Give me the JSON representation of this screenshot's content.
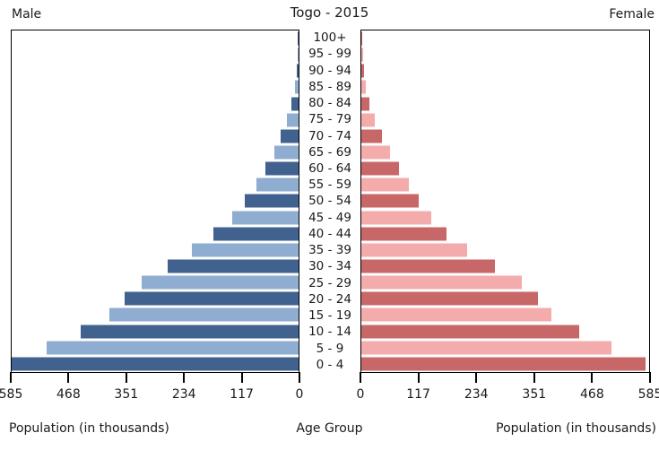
{
  "title": "Togo - 2015",
  "headers": {
    "male": "Male",
    "female": "Female"
  },
  "axis": {
    "left_ticks": [
      "585",
      "468",
      "351",
      "234",
      "117",
      "0"
    ],
    "right_ticks": [
      "0",
      "117",
      "234",
      "351",
      "468",
      "585"
    ],
    "xlabel_left": "Population (in thousands)",
    "xlabel_center": "Age Group",
    "xlabel_right": "Population (in thousands)"
  },
  "colors": {
    "male_dark": "#41618e",
    "male_light": "#8fadd1",
    "female_dark": "#c86767",
    "female_light": "#f4abab",
    "axis_line": "#000000",
    "text": "#1a1a1a"
  },
  "chart_data": {
    "type": "bar",
    "subtype": "population-pyramid",
    "title": "Togo - 2015",
    "xlabel": "Population (in thousands)",
    "ylabel": "Age Group",
    "xlim": [
      0,
      585
    ],
    "grid": false,
    "legend_position": "top-outer (Male left, Female right)",
    "categories_top_to_bottom": [
      "100+",
      "95 - 99",
      "90 - 94",
      "85 - 89",
      "80 - 84",
      "75 - 79",
      "70 - 74",
      "65 - 69",
      "60 - 64",
      "55 - 59",
      "50 - 54",
      "45 - 49",
      "40 - 44",
      "35 - 39",
      "30 - 34",
      "25 - 29",
      "20 - 24",
      "15 - 19",
      "10 - 14",
      "5 - 9",
      "0 - 4"
    ],
    "series": [
      {
        "name": "Male",
        "side": "left",
        "values": [
          1,
          2,
          4,
          8,
          14,
          24,
          36,
          50,
          67,
          86,
          110,
          136,
          174,
          218,
          267,
          320,
          354,
          385,
          445,
          513,
          585
        ]
      },
      {
        "name": "Female",
        "side": "right",
        "values": [
          1,
          3,
          5,
          9,
          16,
          27,
          42,
          59,
          77,
          97,
          117,
          142,
          174,
          215,
          271,
          326,
          359,
          386,
          442,
          508,
          578
        ]
      }
    ],
    "bar_color_pattern": "alternating dark/light per age row, bottom row dark"
  }
}
